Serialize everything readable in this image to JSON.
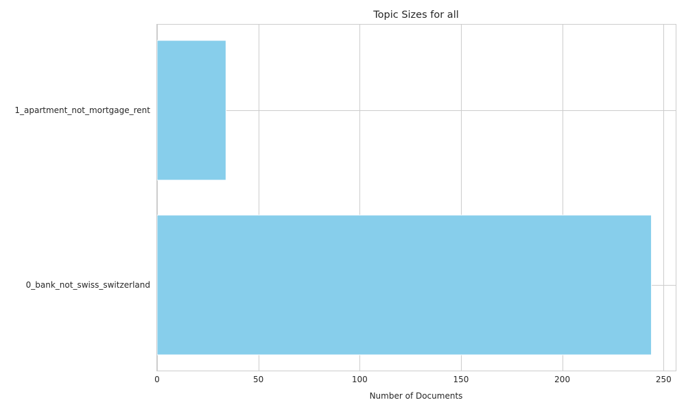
{
  "chart_data": {
    "type": "bar",
    "orientation": "horizontal",
    "title": "Topic Sizes for all",
    "xlabel": "Number of Documents",
    "ylabel": "",
    "categories": [
      "0_bank_not_swiss_switzerland",
      "1_apartment_not_mortgage_rent"
    ],
    "values": [
      244,
      34
    ],
    "xlim": [
      0,
      256
    ],
    "xticks": [
      0,
      50,
      100,
      150,
      200,
      250
    ],
    "bar_color": "#87ceeb",
    "grid": true
  }
}
